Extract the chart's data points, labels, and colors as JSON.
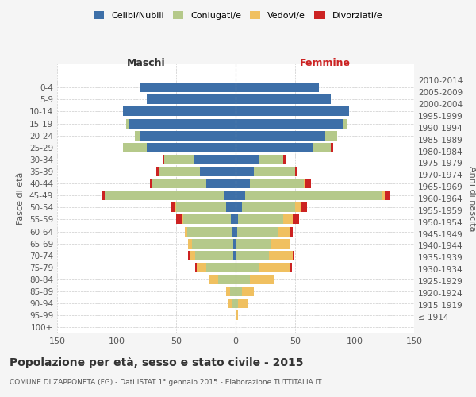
{
  "age_groups": [
    "100+",
    "95-99",
    "90-94",
    "85-89",
    "80-84",
    "75-79",
    "70-74",
    "65-69",
    "60-64",
    "55-59",
    "50-54",
    "45-49",
    "40-44",
    "35-39",
    "30-34",
    "25-29",
    "20-24",
    "15-19",
    "10-14",
    "5-9",
    "0-4"
  ],
  "birth_years": [
    "≤ 1914",
    "1915-1919",
    "1920-1924",
    "1925-1929",
    "1930-1934",
    "1935-1939",
    "1940-1944",
    "1945-1949",
    "1950-1954",
    "1955-1959",
    "1960-1964",
    "1965-1969",
    "1970-1974",
    "1975-1979",
    "1980-1984",
    "1985-1989",
    "1990-1994",
    "1995-1999",
    "2000-2004",
    "2005-2009",
    "2010-2014"
  ],
  "maschi": {
    "celibe": [
      0,
      0,
      0,
      0,
      0,
      0,
      2,
      2,
      3,
      4,
      8,
      10,
      25,
      30,
      35,
      75,
      80,
      90,
      95,
      75,
      80
    ],
    "coniugato": [
      0,
      0,
      3,
      5,
      15,
      25,
      32,
      35,
      38,
      40,
      42,
      100,
      45,
      35,
      25,
      20,
      5,
      2,
      0,
      0,
      0
    ],
    "vedovo": [
      0,
      0,
      3,
      3,
      8,
      8,
      5,
      3,
      2,
      1,
      1,
      0,
      0,
      0,
      0,
      0,
      0,
      0,
      0,
      0,
      0
    ],
    "divorziato": [
      0,
      0,
      0,
      0,
      0,
      1,
      1,
      0,
      0,
      5,
      3,
      2,
      2,
      2,
      1,
      0,
      0,
      0,
      0,
      0,
      0
    ]
  },
  "femmine": {
    "nubile": [
      0,
      0,
      0,
      0,
      0,
      0,
      0,
      0,
      1,
      2,
      5,
      8,
      12,
      15,
      20,
      65,
      75,
      90,
      95,
      80,
      70
    ],
    "coniugata": [
      0,
      0,
      2,
      5,
      12,
      20,
      28,
      30,
      35,
      38,
      45,
      115,
      45,
      35,
      20,
      15,
      10,
      3,
      0,
      0,
      0
    ],
    "vedova": [
      0,
      2,
      8,
      10,
      20,
      25,
      20,
      15,
      10,
      8,
      5,
      2,
      1,
      0,
      0,
      0,
      0,
      0,
      0,
      0,
      0
    ],
    "divorziata": [
      0,
      0,
      0,
      0,
      0,
      2,
      1,
      1,
      2,
      5,
      5,
      5,
      5,
      2,
      2,
      2,
      0,
      0,
      0,
      0,
      0
    ]
  },
  "colors": {
    "celibe": "#3d6fa8",
    "coniugato": "#b5c98a",
    "vedovo": "#f0c060",
    "divorziato": "#cc2222"
  },
  "xlim": 150,
  "title": "Popolazione per età, sesso e stato civile - 2015",
  "subtitle": "COMUNE DI ZAPPONETA (FG) - Dati ISTAT 1° gennaio 2015 - Elaborazione TUTTITALIA.IT",
  "ylabel_left": "Fasce di età",
  "ylabel_right": "Anni di nascita",
  "xlabel_maschi": "Maschi",
  "xlabel_femmine": "Femmine",
  "legend_labels": [
    "Celibi/Nubili",
    "Coniugati/e",
    "Vedovi/e",
    "Divorziati/e"
  ],
  "bg_color": "#f5f5f5",
  "plot_bg": "#ffffff"
}
